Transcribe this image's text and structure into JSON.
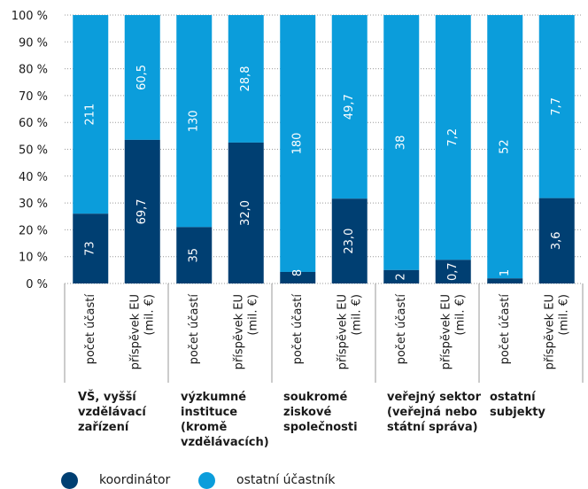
{
  "chart_data": {
    "type": "bar",
    "stacked": true,
    "percent_stacked": true,
    "ylim": [
      0,
      100
    ],
    "y_ticks": [
      "0 %",
      "10 %",
      "20 %",
      "30 %",
      "40 %",
      "50 %",
      "60 %",
      "70 %",
      "80 %",
      "90 %",
      "100 %"
    ],
    "grid": true,
    "legend_position": "bottom-left",
    "groups": [
      {
        "label": "VŠ, vyšší vzdělávací zařízení",
        "bars": [
          {
            "category": "počet účastí",
            "coordinator_pct": 26,
            "coordinator_label": "73",
            "other_label": "211"
          },
          {
            "category": "příspěvek EU (mil. €)",
            "coordinator_pct": 53.5,
            "coordinator_label": "69,7",
            "other_label": "60,5"
          }
        ]
      },
      {
        "label": "výzkumné instituce (kromě vzdělávacích)",
        "bars": [
          {
            "category": "počet účastí",
            "coordinator_pct": 21,
            "coordinator_label": "35",
            "other_label": "130"
          },
          {
            "category": "příspěvek EU (mil. €)",
            "coordinator_pct": 52.5,
            "coordinator_label": "32,0",
            "other_label": "28,8"
          }
        ]
      },
      {
        "label": "soukromé ziskové společnosti",
        "bars": [
          {
            "category": "počet účastí",
            "coordinator_pct": 4.3,
            "coordinator_label": "8",
            "other_label": "180"
          },
          {
            "category": "příspěvek EU (mil. €)",
            "coordinator_pct": 31.6,
            "coordinator_label": "23,0",
            "other_label": "49,7"
          }
        ]
      },
      {
        "label": "veřejný sektor (veřejná nebo státní správa)",
        "bars": [
          {
            "category": "počet účastí",
            "coordinator_pct": 5,
            "coordinator_label": "2",
            "other_label": "38"
          },
          {
            "category": "příspěvek EU (mil. €)",
            "coordinator_pct": 8.8,
            "coordinator_label": "0,7",
            "other_label": "7,2"
          }
        ]
      },
      {
        "label": "ostatní subjekty",
        "bars": [
          {
            "category": "počet účastí",
            "coordinator_pct": 1.9,
            "coordinator_label": "1",
            "other_label": "52"
          },
          {
            "category": "příspěvek EU (mil. €)",
            "coordinator_pct": 31.8,
            "coordinator_label": "3,6",
            "other_label": "7,7"
          }
        ]
      }
    ],
    "series": [
      {
        "name": "koordinátor",
        "color": "#003f72"
      },
      {
        "name": "ostatní účastník",
        "color": "#0b9ddb"
      }
    ]
  }
}
